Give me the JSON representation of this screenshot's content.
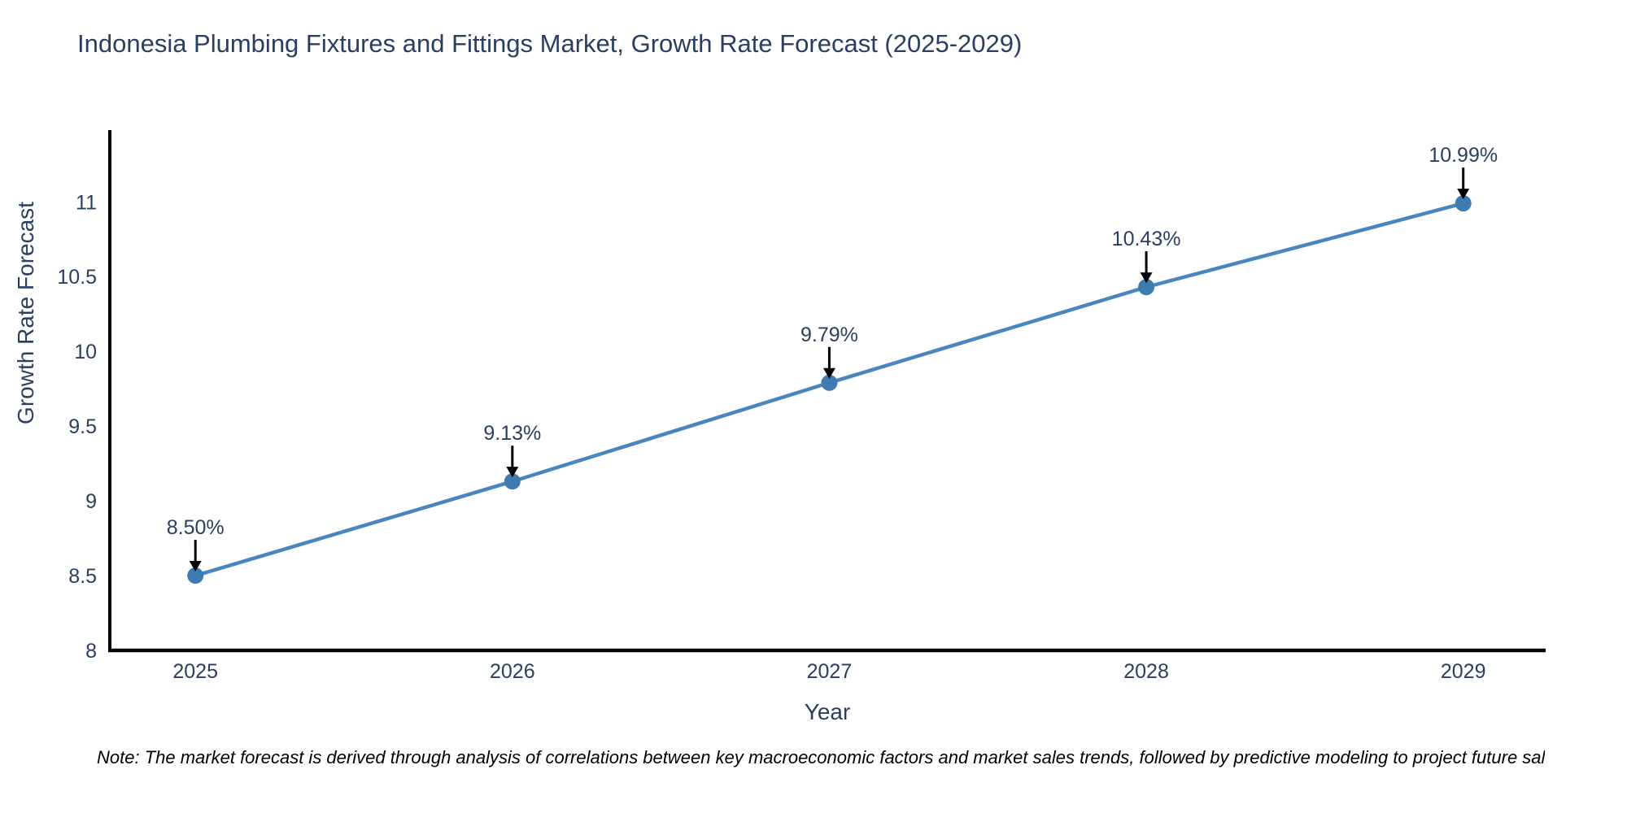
{
  "chart_data": {
    "type": "line",
    "title": "Indonesia Plumbing Fixtures and Fittings Market, Growth Rate Forecast (2025-2029)",
    "xlabel": "Year",
    "ylabel": "Growth Rate Forecast",
    "x": [
      2025,
      2026,
      2027,
      2028,
      2029
    ],
    "series": [
      {
        "name": "Growth Rate Forecast",
        "values": [
          8.5,
          9.13,
          9.79,
          10.43,
          10.99
        ]
      }
    ],
    "point_labels": [
      "8.50%",
      "9.13%",
      "9.79%",
      "10.43%",
      "10.99%"
    ],
    "xticks": [
      "2025",
      "2026",
      "2027",
      "2028",
      "2029"
    ],
    "yticks": [
      8,
      8.5,
      9,
      9.5,
      10,
      10.5,
      11
    ],
    "xlim": [
      2024.73,
      2029.26
    ],
    "ylim": [
      8,
      11.48
    ],
    "grid": false,
    "legend": "none",
    "colors": {
      "line": "#4886bd",
      "marker": "#3d7bb0",
      "axis": "#000000",
      "text": "#2a3f5f",
      "annotation_text": "#2a3f5f",
      "annotation_arrow": "#000000",
      "background": "#ffffff"
    }
  },
  "note": "Note: The market forecast is derived through analysis of correlations between key macroeconomic factors and market sales trends, followed by predictive modeling to project future sal"
}
